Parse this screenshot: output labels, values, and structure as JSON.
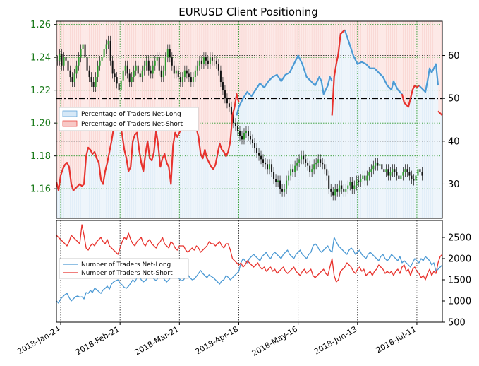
{
  "chart_data": [
    {
      "type": "line",
      "title": "EURUSD Client Positioning",
      "x_ticks": [
        "2018-Jan-24",
        "2018-Feb-21",
        "2018-Mar-21",
        "2018-Apr-18",
        "2018-May-16",
        "2018-Jun-13",
        "2018-Jul-11"
      ],
      "y_left_ticks": [
        "1.16",
        "1.18",
        "1.20",
        "1.22",
        "1.24",
        "1.26"
      ],
      "y_right_ticks": [
        "30",
        "40",
        "50",
        "60"
      ],
      "y_left_range": [
        1.142,
        1.262
      ],
      "y_right_range": [
        22,
        68
      ],
      "left_axis_color": "#1a7a1a",
      "reference_line": 50,
      "grid": true,
      "legend_position": "upper-left",
      "series": [
        {
          "name": "Percentage of Traders Net-Long",
          "color": "#4d9ad4",
          "segments": [
            [
              [
                85,
                46
              ],
              [
                86,
                48
              ],
              [
                88,
                50
              ],
              [
                90,
                51.5
              ],
              [
                92,
                50.5
              ],
              [
                94,
                52
              ],
              [
                96,
                53.5
              ],
              [
                98,
                52.5
              ],
              [
                100,
                54
              ],
              [
                102,
                55
              ],
              [
                104,
                55.5
              ],
              [
                106,
                54
              ],
              [
                108,
                55.5
              ],
              [
                110,
                56
              ],
              [
                112,
                58
              ],
              [
                114,
                60
              ],
              [
                115,
                59
              ],
              [
                116,
                58
              ],
              [
                118,
                55
              ],
              [
                120,
                54
              ],
              [
                122,
                53
              ],
              [
                124,
                55
              ],
              [
                125,
                54
              ],
              [
                126,
                51
              ],
              [
                128,
                53
              ],
              [
                129,
                55
              ],
              [
                130,
                54
              ]
            ],
            [
              [
                136,
                66
              ],
              [
                138,
                63
              ],
              [
                140,
                60
              ],
              [
                142,
                58
              ],
              [
                144,
                58.5
              ],
              [
                146,
                58
              ],
              [
                148,
                57
              ],
              [
                150,
                57
              ],
              [
                152,
                56
              ],
              [
                154,
                55
              ],
              [
                156,
                53
              ],
              [
                158,
                52
              ],
              [
                159,
                54
              ],
              [
                160,
                53
              ],
              [
                161,
                52
              ],
              [
                162,
                51.5
              ],
              [
                163,
                51
              ]
            ],
            [
              [
                171,
                53
              ],
              [
                172,
                52.5
              ],
              [
                173,
                52
              ],
              [
                174,
                51.5
              ],
              [
                175,
                54
              ],
              [
                176,
                57
              ],
              [
                177,
                56
              ],
              [
                178,
                57
              ],
              [
                179,
                58
              ],
              [
                180,
                53
              ]
            ]
          ]
        },
        {
          "name": "Percentage of Traders Net-Short",
          "color": "#e8332e",
          "segments": [
            [
              [
                0,
                30.5
              ],
              [
                1,
                28.5
              ],
              [
                2,
                32
              ],
              [
                3,
                33.5
              ],
              [
                4,
                34.5
              ],
              [
                5,
                35
              ],
              [
                6,
                34
              ],
              [
                7,
                30
              ],
              [
                8,
                28.5
              ],
              [
                9,
                29
              ],
              [
                10,
                29.5
              ],
              [
                11,
                30
              ],
              [
                12,
                29.5
              ],
              [
                13,
                30
              ],
              [
                14,
                36.5
              ],
              [
                15,
                38.5
              ],
              [
                16,
                38
              ],
              [
                17,
                37
              ],
              [
                18,
                37.5
              ],
              [
                19,
                36
              ],
              [
                20,
                35
              ],
              [
                21,
                31
              ],
              [
                22,
                30
              ],
              [
                23,
                33
              ],
              [
                24,
                35
              ],
              [
                25,
                37.5
              ],
              [
                26,
                40
              ],
              [
                27,
                43
              ],
              [
                28,
                45
              ],
              [
                29,
                45.5
              ],
              [
                30,
                44
              ],
              [
                31,
                41.5
              ],
              [
                32,
                38
              ],
              [
                33,
                36
              ],
              [
                34,
                33
              ],
              [
                35,
                34
              ],
              [
                36,
                40
              ],
              [
                37,
                41.5
              ],
              [
                38,
                42
              ],
              [
                39,
                38
              ],
              [
                40,
                35
              ],
              [
                41,
                33
              ],
              [
                42,
                37
              ],
              [
                43,
                40
              ],
              [
                44,
                36
              ],
              [
                45,
                35.5
              ],
              [
                46,
                37.5
              ],
              [
                47,
                42.5
              ],
              [
                48,
                39
              ],
              [
                49,
                34
              ],
              [
                50,
                36
              ],
              [
                51,
                37
              ],
              [
                52,
                35
              ],
              [
                53,
                34
              ],
              [
                54,
                30
              ],
              [
                55,
                39
              ],
              [
                56,
                42
              ],
              [
                57,
                41
              ],
              [
                58,
                42
              ],
              [
                59,
                43
              ],
              [
                60,
                43
              ],
              [
                61,
                42.5
              ],
              [
                62,
                45.5
              ],
              [
                63,
                45
              ],
              [
                64,
                44
              ],
              [
                65,
                45
              ],
              [
                66,
                43
              ],
              [
                67,
                41
              ],
              [
                68,
                37
              ],
              [
                69,
                36
              ],
              [
                70,
                38
              ],
              [
                71,
                36
              ],
              [
                72,
                35
              ],
              [
                73,
                34
              ],
              [
                74,
                33.5
              ],
              [
                75,
                34.5
              ],
              [
                76,
                37
              ],
              [
                77,
                39.5
              ],
              [
                78,
                38
              ],
              [
                79,
                37.5
              ],
              [
                80,
                36.5
              ],
              [
                81,
                37.5
              ],
              [
                82,
                40
              ],
              [
                83,
                46
              ],
              [
                84,
                48
              ],
              [
                85,
                51
              ],
              [
                86,
                49
              ]
            ],
            [
              [
                130,
                46
              ],
              [
                131,
                55
              ],
              [
                132,
                58
              ],
              [
                133,
                60.5
              ],
              [
                134,
                65
              ],
              [
                136,
                66
              ]
            ],
            [
              [
                163,
                51
              ],
              [
                164,
                49
              ],
              [
                165,
                48.5
              ],
              [
                166,
                48
              ],
              [
                167,
                50
              ],
              [
                168,
                52
              ],
              [
                169,
                53
              ],
              [
                170,
                52.5
              ],
              [
                171,
                53
              ]
            ],
            [
              [
                180,
                47
              ],
              [
                181,
                46.5
              ],
              [
                182,
                46
              ]
            ]
          ]
        }
      ]
    },
    {
      "type": "line",
      "title": "",
      "y_right_ticks": [
        "500",
        "1000",
        "1500",
        "2000",
        "2500"
      ],
      "y_right_range": [
        500,
        2900
      ],
      "legend_position": "center-left",
      "series": [
        {
          "name": "Number of Traders Net-Long",
          "color": "#4d9ad4",
          "values": [
            1000,
            950,
            1050,
            1100,
            1150,
            1180,
            1080,
            1000,
            1050,
            1100,
            1120,
            1090,
            1100,
            1050,
            1200,
            1180,
            1250,
            1200,
            1300,
            1270,
            1220,
            1180,
            1260,
            1300,
            1350,
            1280,
            1400,
            1450,
            1480,
            1500,
            1420,
            1380,
            1320,
            1300,
            1350,
            1420,
            1500,
            1450,
            1550,
            1600,
            1500,
            1450,
            1480,
            1550,
            1620,
            1580,
            1520,
            1480,
            1550,
            1600,
            1580,
            1500,
            1450,
            1500,
            1560,
            1650,
            1600,
            1550,
            1520,
            1480,
            1500,
            1580,
            1620,
            1550,
            1500,
            1520,
            1580,
            1650,
            1720,
            1650,
            1600,
            1550,
            1620,
            1580,
            1550,
            1500,
            1450,
            1400,
            1480,
            1500,
            1600,
            1560,
            1500,
            1550,
            1600,
            1650,
            1700,
            1900,
            2000,
            1950,
            1900,
            2000,
            2050,
            2100,
            2050,
            2000,
            1950,
            2050,
            2100,
            2150,
            2050,
            2000,
            2100,
            2150,
            2100,
            2050,
            2000,
            2100,
            2150,
            2200,
            2100,
            2050,
            2000,
            2100,
            2150,
            2200,
            2100,
            2050,
            2000,
            2100,
            2150,
            2300,
            2350,
            2300,
            2200,
            2150,
            2200,
            2250,
            2300,
            2200,
            2150,
            2500,
            2400,
            2300,
            2250,
            2200,
            2150,
            2100,
            2200,
            2250,
            2200,
            2100,
            2150,
            2200,
            2100,
            2050,
            2000,
            2100,
            2150,
            2100,
            2050,
            2000,
            1950,
            2050,
            2100,
            2000,
            1950,
            2000,
            2100,
            2050,
            2000,
            1950,
            2050,
            1900,
            1950,
            1900,
            1850,
            1800,
            1900,
            2000,
            1950,
            1900,
            2000,
            1950,
            2050,
            2000,
            1950,
            1850,
            1900,
            1700,
            1750,
            1800,
            1850
          ]
        },
        {
          "name": "Number of Traders Net-Short",
          "color": "#e8332e",
          "values": [
            2550,
            2500,
            2450,
            2400,
            2350,
            2300,
            2400,
            2550,
            2500,
            2450,
            2400,
            2350,
            2800,
            2550,
            2250,
            2200,
            2300,
            2350,
            2300,
            2400,
            2450,
            2500,
            2400,
            2350,
            2450,
            2300,
            2250,
            2200,
            2150,
            2100,
            2250,
            2400,
            2500,
            2450,
            2600,
            2450,
            2350,
            2300,
            2400,
            2450,
            2500,
            2350,
            2300,
            2400,
            2450,
            2350,
            2300,
            2250,
            2350,
            2400,
            2500,
            2350,
            2300,
            2250,
            2400,
            2350,
            2250,
            2200,
            2300,
            2300,
            2300,
            2200,
            2150,
            2200,
            2250,
            2200,
            2300,
            2250,
            2150,
            2200,
            2250,
            2300,
            2400,
            2350,
            2350,
            2300,
            2350,
            2400,
            2300,
            2250,
            2350,
            2350,
            2200,
            2000,
            1950,
            1900,
            1850,
            1900,
            1800,
            1850,
            1950,
            1900,
            1850,
            1800,
            1850,
            1900,
            1800,
            1750,
            1800,
            1700,
            1750,
            1800,
            1700,
            1750,
            1650,
            1700,
            1750,
            1800,
            1700,
            1650,
            1700,
            1750,
            1800,
            1700,
            1650,
            1600,
            1700,
            1750,
            1650,
            1700,
            1750,
            1600,
            1550,
            1600,
            1650,
            1700,
            1750,
            1650,
            1600,
            1800,
            2000,
            1600,
            1450,
            1500,
            1700,
            1750,
            1800,
            1900,
            1850,
            1800,
            1700,
            1650,
            1750,
            1800,
            1700,
            1750,
            1600,
            1650,
            1700,
            1600,
            1700,
            1750,
            1850,
            1800,
            1750,
            1650,
            1700,
            1650,
            1700,
            1600,
            1700,
            1750,
            1650,
            1800,
            1850,
            1700,
            1750,
            1600,
            1750,
            1800,
            1700,
            1650,
            1550,
            1600,
            1500,
            1650,
            1750,
            1600,
            1700,
            1650,
            1900,
            2050,
            2100
          ]
        }
      ]
    }
  ]
}
